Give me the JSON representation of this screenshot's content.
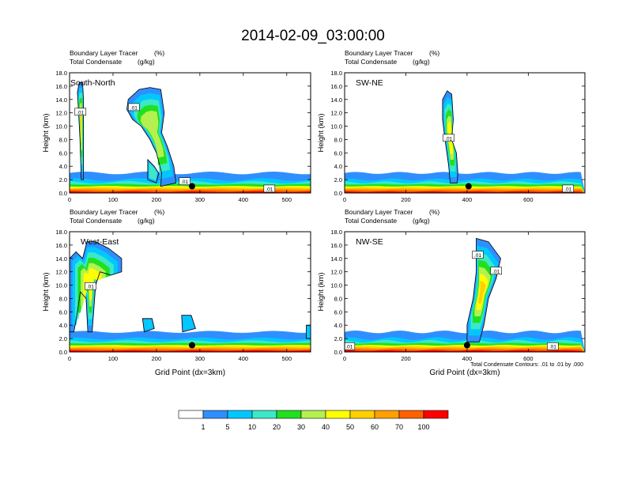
{
  "title": "2014-02-09_03:00:00",
  "colors": {
    "levels": [
      "#ffffff",
      "#2f8fff",
      "#00c8ff",
      "#3ce8c8",
      "#20e020",
      "#b4f050",
      "#ffff00",
      "#ffd000",
      "#ffa000",
      "#ff6000",
      "#ff0000"
    ],
    "contour": "#000000",
    "marker": "#000000"
  },
  "colorbar": {
    "labels": [
      "1",
      "5",
      "10",
      "20",
      "30",
      "40",
      "50",
      "60",
      "70",
      "100"
    ]
  },
  "contour_note": "Total Condensate Contours: .01 to .01 by .000",
  "chart_data": [
    {
      "type": "heatmap",
      "id": "south-north",
      "panel_title": "South-North",
      "top_left_1": "Boundary Layer Tracer",
      "top_right_1": "(%)",
      "top_left_2": "Total Condensate",
      "top_right_2": "(g/kg)",
      "ylabel": "Height (km)",
      "xlabel": "",
      "ylim": [
        0,
        18
      ],
      "xlim": [
        0,
        555
      ],
      "yticks": [
        "0.0",
        "2.0",
        "4.0",
        "6.0",
        "8.0",
        "10.0",
        "12.0",
        "14.0",
        "16.0",
        "18.0"
      ],
      "xticks": [
        {
          "v": 0,
          "label": "0"
        },
        {
          "v": 100,
          "label": "100"
        },
        {
          "v": 200,
          "label": "200"
        },
        {
          "v": 300,
          "label": "300"
        },
        {
          "v": 400,
          "label": "400"
        },
        {
          "v": 500,
          "label": "500"
        }
      ],
      "contour_labels": [
        {
          "x": 25,
          "y": 12.1,
          "label": ".01"
        },
        {
          "x": 148,
          "y": 12.8,
          "label": ".01"
        },
        {
          "x": 265,
          "y": 1.7,
          "label": ".01"
        },
        {
          "x": 460,
          "y": 0.6,
          "label": ".01"
        }
      ],
      "marker": {
        "x": 282,
        "y": 1.0
      },
      "plumes": [
        {
          "pts": [
            [
              22,
              16.5
            ],
            [
              30,
              16.6
            ],
            [
              32,
              14
            ],
            [
              32,
              8
            ],
            [
              32,
              2
            ],
            [
              27,
              2
            ],
            [
              24,
              8
            ],
            [
              20,
              13
            ],
            [
              18,
              15
            ]
          ],
          "core": 7
        },
        {
          "pts": [
            [
              135,
              14
            ],
            [
              160,
              15.5
            ],
            [
              185,
              15.8
            ],
            [
              210,
              15.5
            ],
            [
              218,
              12
            ],
            [
              212,
              9
            ],
            [
              225,
              7
            ],
            [
              240,
              4
            ],
            [
              245,
              1.5
            ],
            [
              210,
              1
            ],
            [
              212,
              3
            ],
            [
              200,
              6
            ],
            [
              185,
              8
            ],
            [
              165,
              10
            ],
            [
              145,
              11
            ],
            [
              132,
              12.5
            ]
          ],
          "core": 5
        },
        {
          "pts": [
            [
              180,
              5
            ],
            [
              195,
              4
            ],
            [
              205,
              3
            ],
            [
              200,
              1.5
            ],
            [
              180,
              2
            ]
          ],
          "core": 3
        }
      ],
      "bl": {
        "c": 1.4,
        "amp": 0.4,
        "top": 3.2
      }
    },
    {
      "type": "heatmap",
      "id": "sw-ne",
      "panel_title": "SW-NE",
      "top_left_1": "Boundary Layer Tracer",
      "top_right_1": "(%)",
      "top_left_2": "Total Condensate",
      "top_right_2": "(g/kg)",
      "ylabel": "Height (km)",
      "xlabel": "",
      "ylim": [
        0,
        18
      ],
      "xlim": [
        0,
        785
      ],
      "yticks": [
        "0.0",
        "2.0",
        "4.0",
        "6.0",
        "8.0",
        "10.0",
        "12.0",
        "14.0",
        "16.0",
        "18.0"
      ],
      "xticks": [
        {
          "v": 0,
          "label": "0"
        },
        {
          "v": 200,
          "label": "200"
        },
        {
          "v": 400,
          "label": "400"
        },
        {
          "v": 600,
          "label": "600"
        }
      ],
      "contour_labels": [
        {
          "x": 340,
          "y": 8.2,
          "label": ".01"
        },
        {
          "x": 730,
          "y": 0.6,
          "label": ".01"
        }
      ],
      "marker": {
        "x": 405,
        "y": 1.0
      },
      "plumes": [
        {
          "pts": [
            [
              320,
              14
            ],
            [
              335,
              15.3
            ],
            [
              350,
              14.8
            ],
            [
              355,
              11
            ],
            [
              350,
              8
            ],
            [
              365,
              6
            ],
            [
              370,
              3
            ],
            [
              368,
              1.5
            ],
            [
              345,
              1.5
            ],
            [
              340,
              4
            ],
            [
              328,
              8
            ],
            [
              320,
              11
            ]
          ],
          "core": 6
        }
      ],
      "bl": {
        "c": 1.4,
        "amp": 0.3,
        "top": 2.8
      }
    },
    {
      "type": "heatmap",
      "id": "west-east",
      "panel_title": "West-East",
      "top_left_1": "Boundary Layer Tracer",
      "top_right_1": "(%)",
      "top_left_2": "Total Condensate",
      "top_right_2": "(g/kg)",
      "ylabel": "Height (km)",
      "xlabel": "Grid Point (dx=3km)",
      "ylim": [
        0,
        18
      ],
      "xlim": [
        0,
        555
      ],
      "yticks": [
        "0.0",
        "2.0",
        "4.0",
        "6.0",
        "8.0",
        "10.0",
        "12.0",
        "14.0",
        "16.0",
        "18.0"
      ],
      "xticks": [
        {
          "v": 0,
          "label": "0"
        },
        {
          "v": 100,
          "label": "100"
        },
        {
          "v": 200,
          "label": "200"
        },
        {
          "v": 300,
          "label": "300"
        },
        {
          "v": 400,
          "label": "400"
        },
        {
          "v": 500,
          "label": "500"
        }
      ],
      "contour_labels": [
        {
          "x": 48,
          "y": 9.8,
          "label": ".01"
        }
      ],
      "marker": {
        "x": 282,
        "y": 1.0
      },
      "plumes": [
        {
          "pts": [
            [
              0,
              14
            ],
            [
              15,
              15
            ],
            [
              30,
              14
            ],
            [
              40,
              16.5
            ],
            [
              60,
              16.5
            ],
            [
              90,
              15.5
            ],
            [
              120,
              14
            ],
            [
              120,
              12
            ],
            [
              95,
              11.5
            ],
            [
              70,
              12
            ],
            [
              60,
              10
            ],
            [
              52,
              3
            ],
            [
              42,
              3
            ],
            [
              38,
              8
            ],
            [
              25,
              9
            ],
            [
              18,
              6
            ],
            [
              10,
              3
            ],
            [
              0,
              3
            ]
          ],
          "core": 6
        },
        {
          "pts": [
            [
              168,
              5
            ],
            [
              190,
              5
            ],
            [
              195,
              3.5
            ],
            [
              172,
              3
            ]
          ],
          "core": 2
        },
        {
          "pts": [
            [
              258,
              5.5
            ],
            [
              280,
              5.5
            ],
            [
              290,
              3.5
            ],
            [
              260,
              3
            ]
          ],
          "core": 2
        },
        {
          "pts": [
            [
              545,
              4
            ],
            [
              555,
              4
            ],
            [
              555,
              2
            ],
            [
              545,
              2
            ]
          ],
          "core": 2
        }
      ],
      "bl": {
        "c": 1.3,
        "amp": 0.3,
        "top": 2.5
      }
    },
    {
      "type": "heatmap",
      "id": "nw-se",
      "panel_title": "NW-SE",
      "top_left_1": "Boundary Layer Tracer",
      "top_right_1": "(%)",
      "top_left_2": "Total Condensate",
      "top_right_2": "(g/kg)",
      "ylabel": "Height (km)",
      "xlabel": "Grid Point (dx=3km)",
      "ylim": [
        0,
        18
      ],
      "xlim": [
        0,
        785
      ],
      "yticks": [
        "0.0",
        "2.0",
        "4.0",
        "6.0",
        "8.0",
        "10.0",
        "12.0",
        "14.0",
        "16.0",
        "18.0"
      ],
      "xticks": [
        {
          "v": 0,
          "label": "0"
        },
        {
          "v": 200,
          "label": "200"
        },
        {
          "v": 400,
          "label": "400"
        },
        {
          "v": 600,
          "label": "600"
        }
      ],
      "contour_labels": [
        {
          "x": 435,
          "y": 14.5,
          "label": ".01"
        },
        {
          "x": 495,
          "y": 12.1,
          "label": ".01"
        },
        {
          "x": 15,
          "y": 0.8,
          "label": ".01"
        },
        {
          "x": 680,
          "y": 0.8,
          "label": ".01"
        }
      ],
      "marker": {
        "x": 400,
        "y": 1.0
      },
      "plumes": [
        {
          "pts": [
            [
              430,
              17
            ],
            [
              470,
              16.5
            ],
            [
              510,
              14
            ],
            [
              495,
              11
            ],
            [
              470,
              8
            ],
            [
              455,
              4
            ],
            [
              440,
              1.5
            ],
            [
              400,
              1.5
            ],
            [
              400,
              4
            ],
            [
              420,
              8
            ],
            [
              430,
              12
            ]
          ],
          "core": 7
        }
      ],
      "bl": {
        "c": 1.4,
        "amp": 0.4,
        "top": 3.0
      }
    }
  ]
}
